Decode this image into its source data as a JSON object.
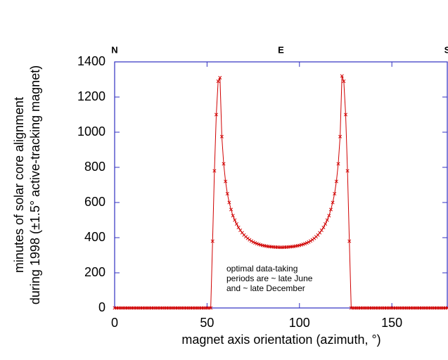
{
  "chart_data": {
    "type": "line",
    "ylabel": [
      "minutes of solar core alignment",
      "during 1998 (±1.5° active-tracking magnet)"
    ],
    "xlabel": "magnet axis orientation (azimuth, °)",
    "annotation": [
      "optimal data-taking",
      "periods are ~ late June",
      "and ~ late December"
    ],
    "xlim": [
      0,
      180
    ],
    "ylim": [
      0,
      1400
    ],
    "xticks": [
      0,
      50,
      100,
      150
    ],
    "yticks": [
      0,
      200,
      400,
      600,
      800,
      1000,
      1200,
      1400
    ],
    "x2ticks": [
      {
        "value": 0,
        "label": "N"
      },
      {
        "value": 90,
        "label": "E"
      },
      {
        "value": 180,
        "label": "S"
      }
    ],
    "series": [
      {
        "color": "#d00000",
        "x": [
          0,
          1,
          2,
          3,
          4,
          5,
          6,
          7,
          8,
          9,
          10,
          11,
          12,
          13,
          14,
          15,
          16,
          17,
          18,
          19,
          20,
          21,
          22,
          23,
          24,
          25,
          26,
          27,
          28,
          29,
          30,
          31,
          32,
          33,
          34,
          35,
          36,
          37,
          38,
          39,
          40,
          41,
          42,
          43,
          44,
          45,
          46,
          47,
          48,
          49,
          50,
          51,
          52,
          53,
          54,
          55,
          56,
          57,
          58,
          59,
          60,
          61,
          62,
          63,
          64,
          65,
          66,
          67,
          68,
          69,
          70,
          71,
          72,
          73,
          74,
          75,
          76,
          77,
          78,
          79,
          80,
          81,
          82,
          83,
          84,
          85,
          86,
          87,
          88,
          89,
          90,
          91,
          92,
          93,
          94,
          95,
          96,
          97,
          98,
          99,
          100,
          101,
          102,
          103,
          104,
          105,
          106,
          107,
          108,
          109,
          110,
          111,
          112,
          113,
          114,
          115,
          116,
          117,
          118,
          119,
          120,
          121,
          122,
          123,
          124,
          125,
          126,
          127,
          128,
          129,
          130,
          131,
          132,
          133,
          134,
          135,
          136,
          137,
          138,
          139,
          140,
          141,
          142,
          143,
          144,
          145,
          146,
          147,
          148,
          149,
          150,
          151,
          152,
          153,
          154,
          155,
          156,
          157,
          158,
          159,
          160,
          161,
          162,
          163,
          164,
          165,
          166,
          167,
          168,
          169,
          170,
          171,
          172,
          173,
          174,
          175,
          176,
          177,
          178,
          179,
          180
        ],
        "values": [
          0,
          0,
          0,
          0,
          0,
          0,
          0,
          0,
          0,
          0,
          0,
          0,
          0,
          0,
          0,
          0,
          0,
          0,
          0,
          0,
          0,
          0,
          0,
          0,
          0,
          0,
          0,
          0,
          0,
          0,
          0,
          0,
          0,
          0,
          0,
          0,
          0,
          0,
          0,
          0,
          0,
          0,
          0,
          0,
          0,
          0,
          0,
          0,
          0,
          0,
          0,
          0,
          0,
          380,
          780,
          1100,
          1290,
          1310,
          975,
          820,
          720,
          650,
          600,
          560,
          525,
          500,
          478,
          458,
          442,
          428,
          415,
          405,
          396,
          388,
          381,
          375,
          370,
          366,
          362,
          359,
          356,
          354,
          352,
          350,
          349,
          348,
          347,
          346,
          346,
          345,
          345,
          345,
          346,
          346,
          347,
          348,
          349,
          350,
          352,
          354,
          356,
          359,
          362,
          366,
          370,
          375,
          381,
          388,
          396,
          405,
          415,
          428,
          442,
          458,
          478,
          500,
          525,
          560,
          600,
          650,
          720,
          820,
          975,
          1320,
          1290,
          1100,
          780,
          380,
          0,
          0,
          0,
          0,
          0,
          0,
          0,
          0,
          0,
          0,
          0,
          0,
          0,
          0,
          0,
          0,
          0,
          0,
          0,
          0,
          0,
          0,
          0,
          0,
          0,
          0,
          0,
          0,
          0,
          0,
          0,
          0,
          0,
          0,
          0,
          0,
          0,
          0,
          0,
          0,
          0,
          0,
          0,
          0,
          0,
          0,
          0,
          0,
          0,
          0,
          0,
          0,
          0
        ]
      }
    ]
  }
}
